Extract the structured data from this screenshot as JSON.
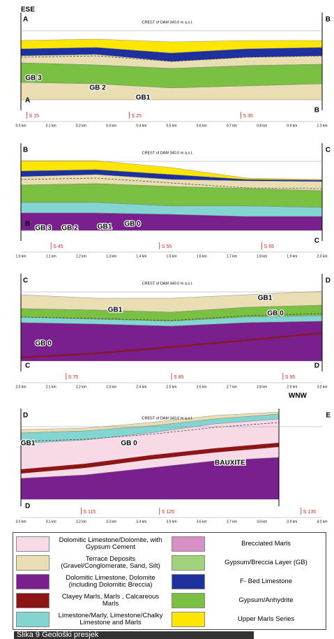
{
  "panels": [
    {
      "direction": "ESE",
      "labels_top": [
        "A",
        "B"
      ],
      "crest": "CREST of DAM 340.0 m a.s.l.",
      "units": [
        "GB 3",
        "GB 2",
        "GB1"
      ],
      "labels_bottom": [
        "A",
        "B"
      ],
      "stations": [
        "S 15",
        "S 25",
        "S 35"
      ],
      "distances": [
        "0.0 km",
        "0.1 km",
        "0.2 km",
        "0.3 km",
        "0.4 km",
        "0.5 km",
        "0.6 km",
        "0.7 km",
        "0.8 km",
        "0.9 km",
        "1.0 km"
      ]
    },
    {
      "labels_top": [
        "B",
        "C"
      ],
      "crest": "CREST of DAM 340.0 m a.s.l.",
      "units": [
        "GB 3",
        "GB 2",
        "GB1",
        "GB 0"
      ],
      "labels_bottom": [
        "B",
        "C"
      ],
      "stations": [
        "S 45",
        "S 55",
        "S 65"
      ],
      "distances": [
        "1.0 km",
        "1.1 km",
        "1.2 km",
        "1.3 km",
        "1.4 km",
        "1.5 km",
        "1.6 km",
        "1.7 km",
        "1.8 km",
        "1.9 km",
        "2.0 km"
      ]
    },
    {
      "labels_top": [
        "C",
        "D"
      ],
      "crest": "CREST of DAM 340.0 m a.s.l.",
      "units": [
        "GB1",
        "GB1",
        "GB 0",
        "GB 0"
      ],
      "labels_bottom": [
        "C",
        "D"
      ],
      "stations": [
        "S 75",
        "S 85",
        "S 95"
      ],
      "distances": [
        "2.0 km",
        "2.1 km",
        "2.2 km",
        "2.3 km",
        "2.4 km",
        "2.5 km",
        "2.6 km",
        "2.7 km",
        "2.8 km",
        "2.9 km",
        "3.0 km"
      ]
    },
    {
      "direction": "WNW",
      "labels_top": [
        "D",
        "E"
      ],
      "crest": "CREST of DAM 340.0 m a.s.l.",
      "units": [
        "GB1",
        "GB 0",
        "BAUXITE"
      ],
      "labels_bottom": [
        "D"
      ],
      "stations": [
        "S 115",
        "S 125",
        "S 135"
      ],
      "distances": [
        "3.0 km",
        "3.1 km",
        "3.2 km",
        "3.3 km",
        "3.4 km",
        "3.5 km",
        "3.6 km",
        "3.7 km",
        "3.8 km",
        "3.9 km",
        "4.0 km"
      ]
    }
  ],
  "legend": {
    "items": [
      {
        "label": "Dolomitic Limestone/Dolomite, with Gypsum Cement",
        "color": "#f7d9e8"
      },
      {
        "label": "Brecciated Marls",
        "color": "#d78fc6"
      },
      {
        "label": "Terrace Deposits (Gravel/Conglomerate, Sand, Silt)",
        "color": "#e9ddb2"
      },
      {
        "label": "Gypsum/Breccia Layer (GB)",
        "color": "#9fd27a"
      },
      {
        "label": "Dolomitic Limestone, Dolomite (including Dolomitic Breccia)",
        "color": "#7a1f8e"
      },
      {
        "label": "F- Bed Limestone",
        "color": "#1e2f9e"
      },
      {
        "label": "Clayey Marls, Marls , Calcareous Marls",
        "color": "#8c1616"
      },
      {
        "label": "Gypsum/Anhydrite",
        "color": "#79c043"
      },
      {
        "label": "Limestone/Marly, Limestone/Chalky Limestone and Marls",
        "color": "#83d5d2"
      },
      {
        "label": "Upper Marls Series",
        "color": "#ffe600"
      }
    ]
  },
  "caption": "Slika 9 Geološki presjek"
}
